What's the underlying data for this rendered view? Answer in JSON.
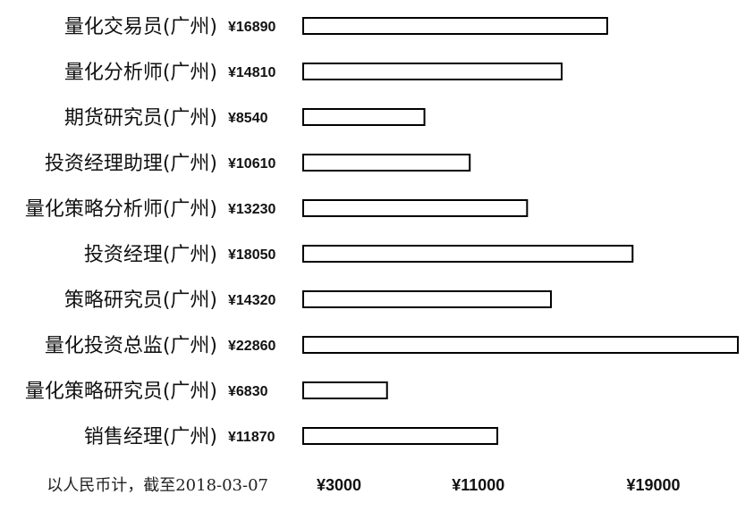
{
  "chart_data": {
    "type": "bar",
    "orientation": "horizontal",
    "categories": [
      "量化交易员(广州)",
      "量化分析师(广州)",
      "期货研究员(广州)",
      "投资经理助理(广州)",
      "量化策略分析师(广州)",
      "投资经理(广州)",
      "策略研究员(广州)",
      "量化投资总监(广州)",
      "量化策略研究员(广州)",
      "销售经理(广州)"
    ],
    "value_labels": [
      "¥16890",
      "¥14810",
      "¥8540",
      "¥10610",
      "¥13230",
      "¥18050",
      "¥14320",
      "¥22860",
      "¥6830",
      "¥11870"
    ],
    "values": [
      16890,
      14810,
      8540,
      10610,
      13230,
      18050,
      14320,
      22860,
      6830,
      11870
    ],
    "xlim": [
      3000,
      22860
    ],
    "xticks": [
      3000,
      11000,
      19000
    ],
    "xtick_labels": [
      "¥3000",
      "¥11000",
      "¥19000"
    ],
    "note": "以人民币计，截至2018-03-07",
    "bar_fill": "#ffffff",
    "bar_stroke": "#000000",
    "grid": false,
    "legend": "none"
  }
}
